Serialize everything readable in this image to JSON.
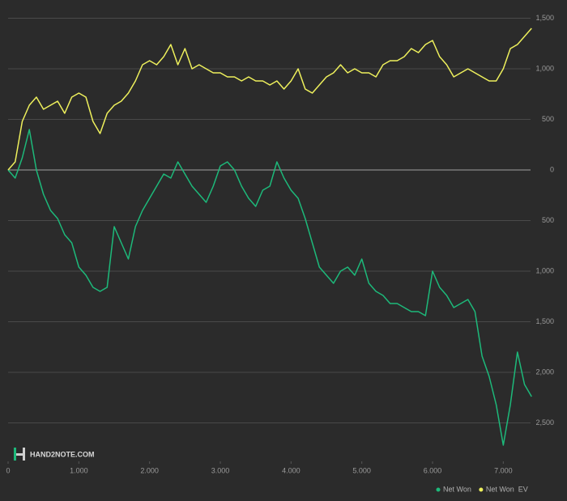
{
  "chart_data": {
    "type": "line",
    "watermark": "HAND2NOTE.COM",
    "x": [
      0,
      100,
      200,
      300,
      400,
      500,
      600,
      700,
      800,
      900,
      1000,
      1100,
      1200,
      1300,
      1400,
      1500,
      1600,
      1700,
      1800,
      1900,
      2000,
      2100,
      2200,
      2300,
      2400,
      2500,
      2600,
      2700,
      2800,
      2900,
      3000,
      3100,
      3200,
      3300,
      3400,
      3500,
      3600,
      3700,
      3800,
      3900,
      4000,
      4100,
      4200,
      4300,
      4400,
      4500,
      4600,
      4700,
      4800,
      4900,
      5000,
      5100,
      5200,
      5300,
      5400,
      5500,
      5600,
      5700,
      5800,
      5900,
      6000,
      6100,
      6200,
      6300,
      6400,
      6500,
      6600,
      6700,
      6800,
      6900,
      7000,
      7100,
      7200,
      7300,
      7400
    ],
    "series": [
      {
        "name": "Net Won",
        "color": "#1db97a",
        "values": [
          0,
          -80,
          120,
          400,
          0,
          -240,
          -400,
          -480,
          -640,
          -720,
          -960,
          -1040,
          -1160,
          -1200,
          -1160,
          -560,
          -720,
          -880,
          -560,
          -400,
          -280,
          -160,
          -40,
          -80,
          80,
          -40,
          -160,
          -240,
          -320,
          -160,
          40,
          80,
          0,
          -160,
          -280,
          -360,
          -200,
          -160,
          80,
          -80,
          -200,
          -280,
          -480,
          -720,
          -960,
          -1040,
          -1120,
          -1000,
          -960,
          -1040,
          -880,
          -1120,
          -1200,
          -1240,
          -1320,
          -1320,
          -1360,
          -1400,
          -1400,
          -1440,
          -1000,
          -1160,
          -1240,
          -1360,
          -1320,
          -1280,
          -1400,
          -1840,
          -2040,
          -2320,
          -2720,
          -2320,
          -1800,
          -2120,
          -2240
        ]
      },
      {
        "name": "Net Won  EV",
        "color": "#eef05c",
        "values": [
          0,
          80,
          480,
          640,
          720,
          600,
          640,
          680,
          560,
          720,
          760,
          720,
          480,
          360,
          560,
          640,
          680,
          760,
          880,
          1040,
          1080,
          1040,
          1120,
          1240,
          1040,
          1200,
          1000,
          1040,
          1000,
          960,
          960,
          920,
          920,
          880,
          920,
          880,
          880,
          840,
          880,
          800,
          880,
          1000,
          800,
          760,
          840,
          920,
          960,
          1040,
          960,
          1000,
          960,
          960,
          920,
          1040,
          1080,
          1080,
          1120,
          1200,
          1160,
          1240,
          1280,
          1120,
          1040,
          920,
          960,
          1000,
          960,
          920,
          880,
          880,
          1000,
          1200,
          1240,
          1320,
          1400
        ]
      }
    ],
    "xlim": [
      0,
      7500
    ],
    "ylim": [
      -2840,
      1680
    ],
    "xticks": [
      0,
      {
        "value": 1000,
        "label": "1.000"
      },
      {
        "value": 2000,
        "label": "2.000"
      },
      {
        "value": 3000,
        "label": "3.000"
      },
      {
        "value": 4000,
        "label": "4.000"
      },
      {
        "value": 5000,
        "label": "5.000"
      },
      {
        "value": 6000,
        "label": "6.000"
      },
      {
        "value": 7000,
        "label": "7.000"
      }
    ],
    "yticks": [
      {
        "value": 1500,
        "label": "1,500"
      },
      {
        "value": 1000,
        "label": "1,000"
      },
      500,
      0,
      {
        "value": -500,
        "label": "500"
      },
      {
        "value": -1000,
        "label": "1,000"
      },
      {
        "value": -1500,
        "label": "1,500"
      },
      {
        "value": -2000,
        "label": "2,000"
      },
      {
        "value": -2500,
        "label": "2,500"
      }
    ],
    "grid": true,
    "legend": "bottom-right"
  }
}
